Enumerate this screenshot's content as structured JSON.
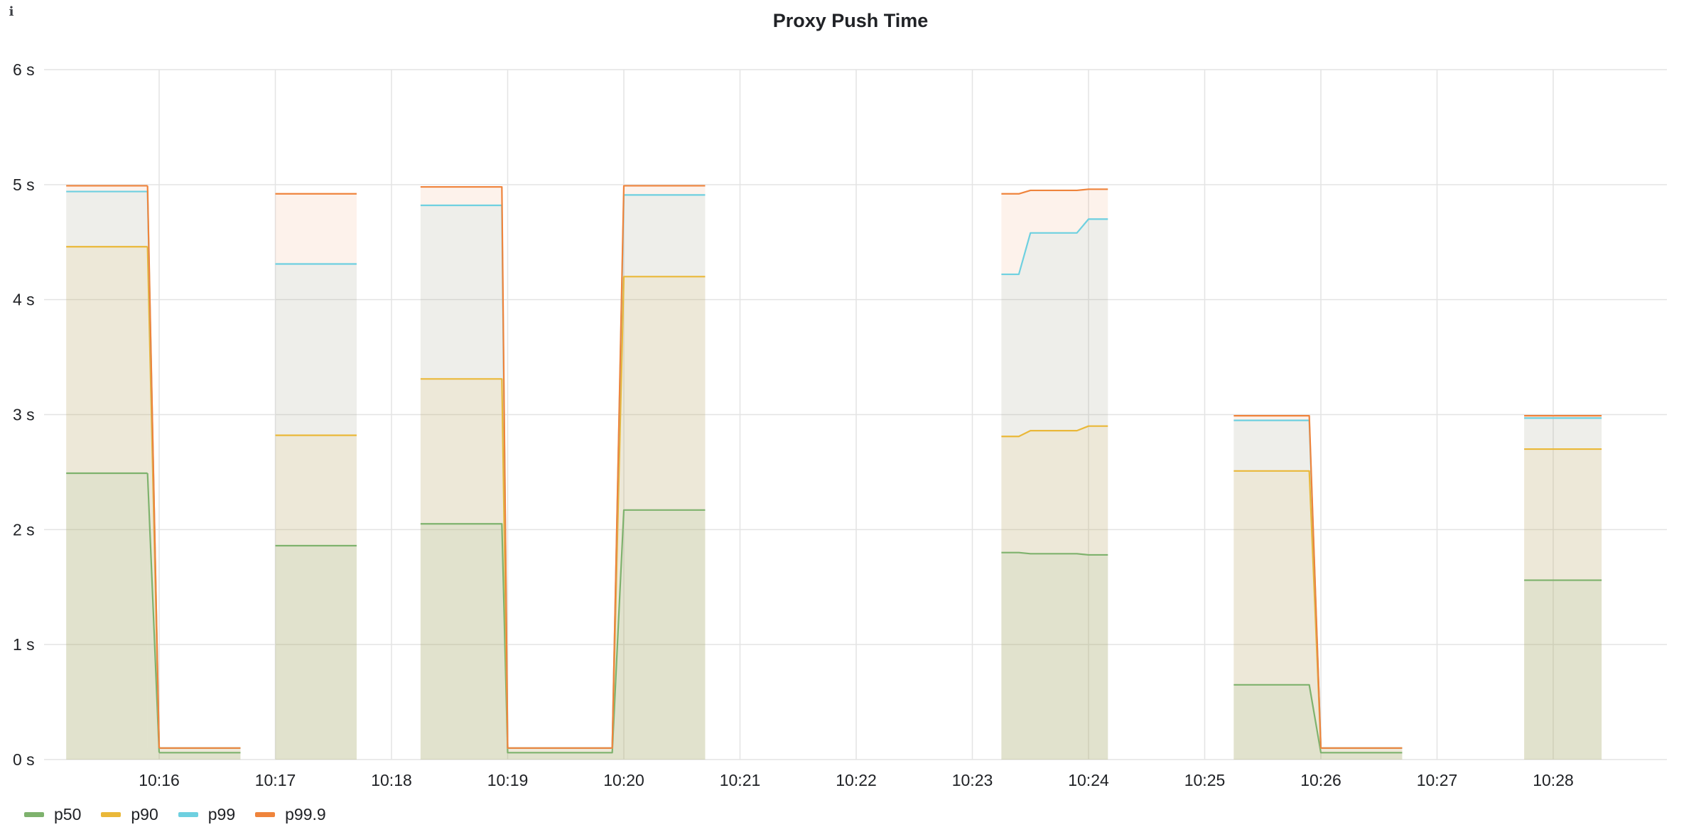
{
  "panel": {
    "title": "Proxy Push Time",
    "info_icon": "info-icon"
  },
  "colors": {
    "p50": "#7eb26d",
    "p90": "#eab839",
    "p99": "#6ed0e0",
    "p99_9": "#ef843c",
    "grid": "#e4e4e4",
    "axis_text": "#202226"
  },
  "chart_data": {
    "type": "area",
    "title": "Proxy Push Time",
    "xlabel": "",
    "ylabel": "",
    "ylim": [
      0,
      6
    ],
    "y_ticks": [
      "0 s",
      "1 s",
      "2 s",
      "3 s",
      "4 s",
      "5 s",
      "6 s"
    ],
    "x_ticks": [
      "10:16",
      "10:17",
      "10:18",
      "10:19",
      "10:20",
      "10:21",
      "10:22",
      "10:23",
      "10:24",
      "10:25",
      "10:26",
      "10:27",
      "10:28"
    ],
    "grid": true,
    "legend_position": "bottom-left",
    "segments": [
      {
        "x": [
          "10:15:12",
          "10:15:54"
        ],
        "series": {
          "p50": [
            2.49,
            2.49
          ],
          "p90": [
            4.46,
            4.46
          ],
          "p99": [
            4.94,
            4.94
          ],
          "p99.9": [
            4.99,
            4.99
          ]
        }
      },
      {
        "x": [
          "10:15:54",
          "10:16:00"
        ],
        "series": {
          "p50": [
            2.49,
            0.06
          ],
          "p90": [
            4.46,
            0.1
          ],
          "p99": [
            4.94,
            0.1
          ],
          "p99.9": [
            4.99,
            0.1
          ]
        }
      },
      {
        "x": [
          "10:16:00",
          "10:16:42"
        ],
        "series": {
          "p50": [
            0.06,
            0.06
          ],
          "p90": [
            0.1,
            0.1
          ],
          "p99": [
            0.1,
            0.1
          ],
          "p99.9": [
            0.1,
            0.1
          ]
        }
      },
      {
        "x": [
          "10:17:00",
          "10:17:42"
        ],
        "series": {
          "p50": [
            1.86,
            1.86
          ],
          "p90": [
            2.82,
            2.82
          ],
          "p99": [
            4.31,
            4.31
          ],
          "p99.9": [
            4.92,
            4.92
          ]
        }
      },
      {
        "x": [
          "10:18:15",
          "10:18:57",
          "10:19:00",
          "10:19:54",
          "10:20:00",
          "10:20:42"
        ],
        "series": {
          "p50": [
            2.05,
            2.05,
            0.06,
            0.06,
            2.17,
            2.17
          ],
          "p90": [
            3.31,
            3.31,
            0.1,
            0.1,
            4.2,
            4.2
          ],
          "p99": [
            4.82,
            4.82,
            0.1,
            0.1,
            4.91,
            4.91
          ],
          "p99.9": [
            4.98,
            4.98,
            0.1,
            0.1,
            4.99,
            4.99
          ]
        }
      },
      {
        "x": [
          "10:23:15",
          "10:23:24",
          "10:23:30",
          "10:23:54",
          "10:24:00",
          "10:24:10"
        ],
        "series": {
          "p50": [
            1.8,
            1.8,
            1.79,
            1.79,
            1.78,
            1.78
          ],
          "p90": [
            2.81,
            2.81,
            2.86,
            2.86,
            2.9,
            2.9
          ],
          "p99": [
            4.22,
            4.22,
            4.58,
            4.58,
            4.7,
            4.7
          ],
          "p99.9": [
            4.92,
            4.92,
            4.95,
            4.95,
            4.96,
            4.96
          ]
        }
      },
      {
        "x": [
          "10:25:15",
          "10:25:54",
          "10:26:00",
          "10:26:42"
        ],
        "series": {
          "p50": [
            0.65,
            0.65,
            0.06,
            0.06
          ],
          "p90": [
            2.51,
            2.51,
            0.1,
            0.1
          ],
          "p99": [
            2.95,
            2.95,
            0.1,
            0.1
          ],
          "p99.9": [
            2.99,
            2.99,
            0.1,
            0.1
          ]
        }
      },
      {
        "x": [
          "10:27:45",
          "10:28:25"
        ],
        "series": {
          "p50": [
            1.56,
            1.56
          ],
          "p90": [
            2.7,
            2.7
          ],
          "p99": [
            2.97,
            2.97
          ],
          "p99.9": [
            2.99,
            2.99
          ]
        }
      }
    ],
    "series_names": [
      "p50",
      "p90",
      "p99",
      "p99.9"
    ]
  },
  "legend": {
    "items": [
      {
        "label": "p50",
        "color": "#7eb26d"
      },
      {
        "label": "p90",
        "color": "#eab839"
      },
      {
        "label": "p99",
        "color": "#6ed0e0"
      },
      {
        "label": "p99.9",
        "color": "#ef843c"
      }
    ]
  }
}
